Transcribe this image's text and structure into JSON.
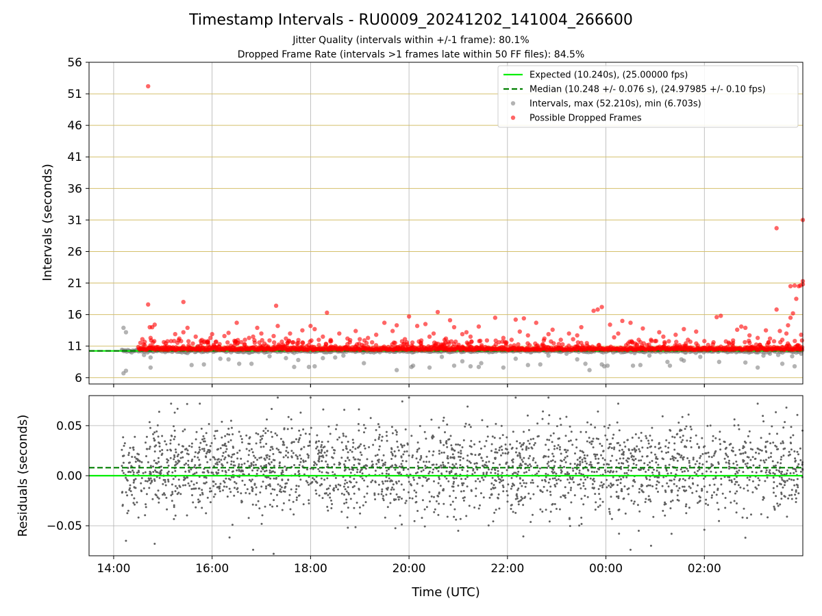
{
  "chart_data": [
    {
      "type": "scatter",
      "title": "Timestamp Intervals - RU0009_20241202_141004_266600",
      "subtitle_lines": [
        "Jitter Quality (intervals within +/-1 frame): 80.1%",
        "Dropped Frame Rate (intervals >1 frames late within 50 FF files): 84.5%"
      ],
      "xlabel": "",
      "ylabel": "Intervals (seconds)",
      "x_axis": {
        "start": "13:30",
        "end": "04:00",
        "ticks": [
          "14:00",
          "16:00",
          "18:00",
          "20:00",
          "22:00",
          "00:00",
          "02:00"
        ]
      },
      "ylim": [
        5,
        56
      ],
      "yticks": [
        6,
        11,
        16,
        21,
        26,
        31,
        36,
        41,
        46,
        51,
        56
      ],
      "grid": true,
      "legend_position": "top-right",
      "legend": [
        "Expected (10.240s), (25.00000 fps)",
        "Median (10.248 +/- 0.076 s), (24.97985 +/- 0.10 fps)",
        "Intervals, max (52.210s), min (6.703s)",
        "Possible Dropped Frames"
      ],
      "series": [
        {
          "name": "Expected (10.240s), (25.00000 fps)",
          "kind": "hline",
          "y": 10.24,
          "color": "#00ee00"
        },
        {
          "name": "Median (10.248 +/- 0.076 s), (24.97985 +/- 0.10 fps)",
          "kind": "hline-dashed",
          "y": 10.248,
          "color": "#007f00"
        },
        {
          "name": "Intervals, max (52.210s), min (6.703s)",
          "kind": "scatter",
          "color": "#808080",
          "baseline": 10.24,
          "points": [
            [
              "14:12",
              13.9
            ],
            [
              "14:12",
              6.7
            ],
            [
              "14:15",
              7.1
            ],
            [
              "14:15",
              13.2
            ],
            [
              "14:20",
              10.2
            ],
            [
              "14:37",
              9.6
            ],
            [
              "14:45",
              9.2
            ],
            [
              "14:45",
              7.6
            ],
            [
              "15:30",
              9.9
            ],
            [
              "15:35",
              8.0
            ],
            [
              "15:42",
              10.9
            ],
            [
              "15:50",
              8.1
            ],
            [
              "16:10",
              9.0
            ],
            [
              "16:20",
              8.9
            ],
            [
              "16:33",
              8.2
            ],
            [
              "16:48",
              8.2
            ],
            [
              "17:10",
              9.4
            ],
            [
              "17:30",
              9.1
            ],
            [
              "17:40",
              7.7
            ],
            [
              "17:45",
              8.8
            ],
            [
              "17:58",
              7.7
            ],
            [
              "18:05",
              7.8
            ],
            [
              "18:15",
              9.1
            ],
            [
              "18:30",
              9.2
            ],
            [
              "18:40",
              9.5
            ],
            [
              "18:50",
              10.3
            ],
            [
              "19:05",
              8.3
            ],
            [
              "19:45",
              7.2
            ],
            [
              "20:03",
              7.7
            ],
            [
              "20:05",
              7.9
            ],
            [
              "20:25",
              7.6
            ],
            [
              "20:40",
              9.3
            ],
            [
              "20:55",
              7.9
            ],
            [
              "21:05",
              8.6
            ],
            [
              "21:15",
              7.8
            ],
            [
              "21:25",
              7.7
            ],
            [
              "21:28",
              8.3
            ],
            [
              "21:55",
              7.6
            ],
            [
              "22:10",
              9.0
            ],
            [
              "22:25",
              8.0
            ],
            [
              "22:40",
              8.1
            ],
            [
              "22:50",
              9.5
            ],
            [
              "23:12",
              9.8
            ],
            [
              "23:25",
              8.9
            ],
            [
              "23:35",
              8.2
            ],
            [
              "23:40",
              7.2
            ],
            [
              "23:55",
              8.1
            ],
            [
              "23:58",
              7.8
            ],
            [
              "00:02",
              7.9
            ],
            [
              "00:30",
              10.4
            ],
            [
              "00:33",
              7.9
            ],
            [
              "00:35",
              9.9
            ],
            [
              "00:42",
              8.0
            ],
            [
              "00:53",
              9.5
            ],
            [
              "00:55",
              10.8
            ],
            [
              "01:15",
              8.5
            ],
            [
              "01:18",
              7.9
            ],
            [
              "01:32",
              8.9
            ],
            [
              "01:35",
              8.7
            ],
            [
              "01:55",
              9.3
            ],
            [
              "02:10",
              10.2
            ],
            [
              "02:18",
              8.5
            ],
            [
              "02:48",
              10.1
            ],
            [
              "02:50",
              8.4
            ],
            [
              "03:05",
              7.6
            ],
            [
              "03:12",
              9.5
            ],
            [
              "03:20",
              9.8
            ],
            [
              "03:30",
              9.6
            ],
            [
              "03:35",
              8.2
            ],
            [
              "03:47",
              9.4
            ],
            [
              "03:50",
              7.8
            ],
            [
              "03:58",
              9.8
            ]
          ]
        },
        {
          "name": "Possible Dropped Frames",
          "kind": "scatter",
          "color": "#ff0000",
          "baseline": 10.4,
          "points": [
            [
              "14:42",
              52.2
            ],
            [
              "14:42",
              17.6
            ],
            [
              "14:44",
              14.0
            ],
            [
              "14:47",
              14.0
            ],
            [
              "14:50",
              14.4
            ],
            [
              "14:45",
              12.3
            ],
            [
              "14:48",
              11.6
            ],
            [
              "14:35",
              12.1
            ],
            [
              "15:10",
              11.8
            ],
            [
              "15:15",
              12.9
            ],
            [
              "15:20",
              12.2
            ],
            [
              "15:25",
              13.2
            ],
            [
              "15:30",
              13.9
            ],
            [
              "15:25",
              18.0
            ],
            [
              "15:40",
              12.5
            ],
            [
              "15:47",
              11.5
            ],
            [
              "15:55",
              11.6
            ],
            [
              "15:58",
              12.3
            ],
            [
              "16:00",
              12.9
            ],
            [
              "16:05",
              11.7
            ],
            [
              "16:15",
              12.6
            ],
            [
              "16:20",
              13.1
            ],
            [
              "16:30",
              14.7
            ],
            [
              "16:40",
              12.0
            ],
            [
              "16:45",
              12.3
            ],
            [
              "16:50",
              12.5
            ],
            [
              "16:55",
              13.9
            ],
            [
              "17:00",
              13.0
            ],
            [
              "17:10",
              11.9
            ],
            [
              "17:15",
              12.6
            ],
            [
              "17:20",
              14.2
            ],
            [
              "17:18",
              17.4
            ],
            [
              "17:25",
              11.7
            ],
            [
              "17:30",
              12.2
            ],
            [
              "17:35",
              13.0
            ],
            [
              "17:45",
              11.5
            ],
            [
              "17:50",
              13.5
            ],
            [
              "18:00",
              14.2
            ],
            [
              "18:05",
              13.7
            ],
            [
              "18:10",
              12.0
            ],
            [
              "18:15",
              12.5
            ],
            [
              "18:20",
              16.3
            ],
            [
              "18:25",
              11.8
            ],
            [
              "18:35",
              13.0
            ],
            [
              "18:45",
              12.2
            ],
            [
              "18:55",
              13.4
            ],
            [
              "19:00",
              12.1
            ],
            [
              "19:10",
              12.3
            ],
            [
              "19:15",
              11.6
            ],
            [
              "19:20",
              12.8
            ],
            [
              "19:30",
              14.7
            ],
            [
              "19:40",
              13.4
            ],
            [
              "19:45",
              14.3
            ],
            [
              "19:55",
              12.1
            ],
            [
              "20:00",
              15.7
            ],
            [
              "20:10",
              14.2
            ],
            [
              "20:15",
              11.9
            ],
            [
              "20:20",
              14.5
            ],
            [
              "20:25",
              12.5
            ],
            [
              "20:30",
              13.0
            ],
            [
              "20:35",
              16.4
            ],
            [
              "20:45",
              12.2
            ],
            [
              "20:50",
              15.1
            ],
            [
              "20:55",
              14.0
            ],
            [
              "21:05",
              12.9
            ],
            [
              "21:10",
              13.2
            ],
            [
              "21:15",
              12.5
            ],
            [
              "21:25",
              14.1
            ],
            [
              "21:35",
              11.9
            ],
            [
              "21:45",
              15.5
            ],
            [
              "21:55",
              12.3
            ],
            [
              "22:05",
              12.0
            ],
            [
              "22:10",
              15.2
            ],
            [
              "22:15",
              13.3
            ],
            [
              "22:20",
              15.4
            ],
            [
              "22:25",
              12.7
            ],
            [
              "22:35",
              14.7
            ],
            [
              "22:45",
              12.2
            ],
            [
              "22:50",
              12.9
            ],
            [
              "22:55",
              13.6
            ],
            [
              "23:05",
              12.0
            ],
            [
              "23:15",
              13.0
            ],
            [
              "23:20",
              12.1
            ],
            [
              "23:25",
              12.7
            ],
            [
              "23:30",
              14.0
            ],
            [
              "23:45",
              16.6
            ],
            [
              "23:50",
              16.8
            ],
            [
              "23:55",
              17.2
            ],
            [
              "00:05",
              14.4
            ],
            [
              "00:10",
              12.4
            ],
            [
              "00:15",
              13.0
            ],
            [
              "00:20",
              15.0
            ],
            [
              "00:30",
              14.7
            ],
            [
              "00:40",
              12.0
            ],
            [
              "00:45",
              13.8
            ],
            [
              "00:55",
              12.0
            ],
            [
              "01:05",
              13.2
            ],
            [
              "01:10",
              12.5
            ],
            [
              "01:25",
              12.8
            ],
            [
              "01:35",
              13.7
            ],
            [
              "01:40",
              12.0
            ],
            [
              "01:50",
              13.3
            ],
            [
              "02:00",
              11.8
            ],
            [
              "02:15",
              15.6
            ],
            [
              "02:20",
              15.8
            ],
            [
              "02:35",
              11.9
            ],
            [
              "02:40",
              13.6
            ],
            [
              "02:45",
              14.1
            ],
            [
              "02:50",
              13.9
            ],
            [
              "02:55",
              12.7
            ],
            [
              "03:05",
              12.3
            ],
            [
              "03:15",
              13.5
            ],
            [
              "03:20",
              12.2
            ],
            [
              "03:28",
              29.7
            ],
            [
              "03:28",
              16.8
            ],
            [
              "03:32",
              13.4
            ],
            [
              "03:35",
              12.0
            ],
            [
              "03:40",
              13.0
            ],
            [
              "03:42",
              14.3
            ],
            [
              "03:45",
              20.5
            ],
            [
              "03:45",
              15.5
            ],
            [
              "03:48",
              16.2
            ],
            [
              "03:50",
              20.6
            ],
            [
              "03:52",
              18.5
            ],
            [
              "03:55",
              20.5
            ],
            [
              "03:57",
              20.6
            ],
            [
              "03:58",
              12.8
            ],
            [
              "04:00",
              31.0
            ],
            [
              "04:00",
              21.3
            ],
            [
              "04:00",
              20.8
            ],
            [
              "03:59",
              11.9
            ]
          ]
        }
      ]
    },
    {
      "type": "scatter",
      "title": "",
      "xlabel": "Time (UTC)",
      "ylabel": "Residuals (seconds)",
      "x_axis": {
        "start": "13:30",
        "end": "04:00",
        "ticks": [
          "14:00",
          "16:00",
          "18:00",
          "20:00",
          "22:00",
          "00:00",
          "02:00"
        ]
      },
      "ylim": [
        -0.08,
        0.08
      ],
      "yticks": [
        -0.05,
        0.0,
        0.05
      ],
      "ytick_labels": [
        "−0.05",
        "0.00",
        "0.05"
      ],
      "grid": true,
      "series": [
        {
          "kind": "hline",
          "y": 0.0,
          "color": "#00ee00"
        },
        {
          "kind": "hline-dashed",
          "y": 0.008,
          "color": "#007f00"
        },
        {
          "kind": "residual-cloud",
          "color": "#606060",
          "center": 0.008,
          "spread": 0.022,
          "point_count": 2600,
          "start": "14:10",
          "end": "04:00",
          "outliers": [
            [
              "14:15",
              -0.065
            ],
            [
              "14:50",
              -0.068
            ],
            [
              "15:10",
              0.072
            ],
            [
              "15:45",
              0.072
            ],
            [
              "16:50",
              -0.074
            ],
            [
              "17:15",
              -0.078
            ],
            [
              "17:20",
              0.078
            ],
            [
              "18:00",
              0.078
            ],
            [
              "20:00",
              0.078
            ],
            [
              "21:00",
              -0.055
            ],
            [
              "22:10",
              0.078
            ],
            [
              "22:50",
              0.078
            ],
            [
              "23:30",
              -0.042
            ],
            [
              "00:30",
              -0.074
            ],
            [
              "00:40",
              -0.055
            ],
            [
              "00:55",
              -0.07
            ],
            [
              "01:20",
              -0.058
            ],
            [
              "02:00",
              -0.054
            ],
            [
              "02:50",
              -0.062
            ],
            [
              "03:05",
              0.072
            ],
            [
              "03:40",
              0.068
            ],
            [
              "00:15",
              0.072
            ]
          ]
        }
      ]
    }
  ]
}
